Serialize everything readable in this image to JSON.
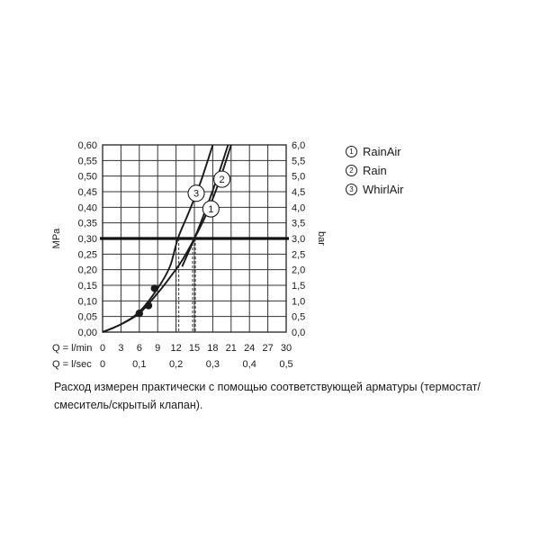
{
  "chart_data": {
    "type": "line",
    "title": "",
    "y_left": {
      "label": "MPa",
      "range": [
        0,
        0.6
      ],
      "ticks": [
        "0,00",
        "0,05",
        "0,10",
        "0,15",
        "0,20",
        "0,25",
        "0,30",
        "0,35",
        "0,40",
        "0,45",
        "0,50",
        "0,55",
        "0,60"
      ]
    },
    "y_right": {
      "label": "bar",
      "range": [
        0,
        6
      ],
      "ticks": [
        "0,0",
        "0,5",
        "1,0",
        "1,5",
        "2,0",
        "2,5",
        "3,0",
        "3,5",
        "4,0",
        "4,5",
        "5,0",
        "5,5",
        "6,0"
      ]
    },
    "x_lmin": {
      "label": "Q = l/min",
      "range": [
        0,
        30
      ],
      "ticks": [
        "0",
        "3",
        "6",
        "9",
        "12",
        "15",
        "18",
        "21",
        "24",
        "27",
        "30"
      ]
    },
    "x_lsec": {
      "label": "Q = l/sec",
      "ticks": [
        {
          "value": 0,
          "label": "0"
        },
        {
          "value": 0.1,
          "label": "0,1"
        },
        {
          "value": 0.2,
          "label": "0,2"
        },
        {
          "value": 0.3,
          "label": "0,3"
        },
        {
          "value": 0.4,
          "label": "0,4"
        },
        {
          "value": 0.5,
          "label": "0,5"
        }
      ]
    },
    "grid": true,
    "reference_line": {
      "y": 0.3
    },
    "series": [
      {
        "marker": "1",
        "name": "RainAir",
        "label_at": [
          17.7,
          0.395
        ],
        "x": [
          0,
          3,
          6,
          9,
          11,
          13,
          15,
          17,
          19,
          21
        ],
        "y": [
          0,
          0.025,
          0.06,
          0.125,
          0.175,
          0.23,
          0.3,
          0.38,
          0.48,
          0.6
        ]
      },
      {
        "marker": "2",
        "name": "Rain",
        "label_at": [
          19.5,
          0.49
        ],
        "x": [
          13,
          15,
          17,
          19,
          20.5
        ],
        "y": [
          0.21,
          0.3,
          0.4,
          0.51,
          0.6
        ]
      },
      {
        "marker": "3",
        "name": "WhirlAir",
        "label_at": [
          15.3,
          0.445
        ],
        "x": [
          0,
          3,
          6,
          9,
          11,
          12.3,
          14,
          16,
          18
        ],
        "y": [
          0,
          0.025,
          0.065,
          0.14,
          0.21,
          0.3,
          0.38,
          0.48,
          0.6
        ]
      }
    ],
    "flow_markers": [
      {
        "x": 12.3,
        "y": 0.3
      },
      {
        "x": 15,
        "y": 0.3
      }
    ],
    "points": [
      {
        "x": 6,
        "y": 0.06
      },
      {
        "x": 7.5,
        "y": 0.085
      },
      {
        "x": 8.5,
        "y": 0.14
      }
    ]
  },
  "legend": [
    {
      "marker": "1",
      "name": "RainAir"
    },
    {
      "marker": "2",
      "name": "Rain"
    },
    {
      "marker": "3",
      "name": "WhirlAir"
    }
  ],
  "note": "Расход измерен практически с помощью соответствующей арматуры (термостат/смеситель/скрытый клапан)."
}
